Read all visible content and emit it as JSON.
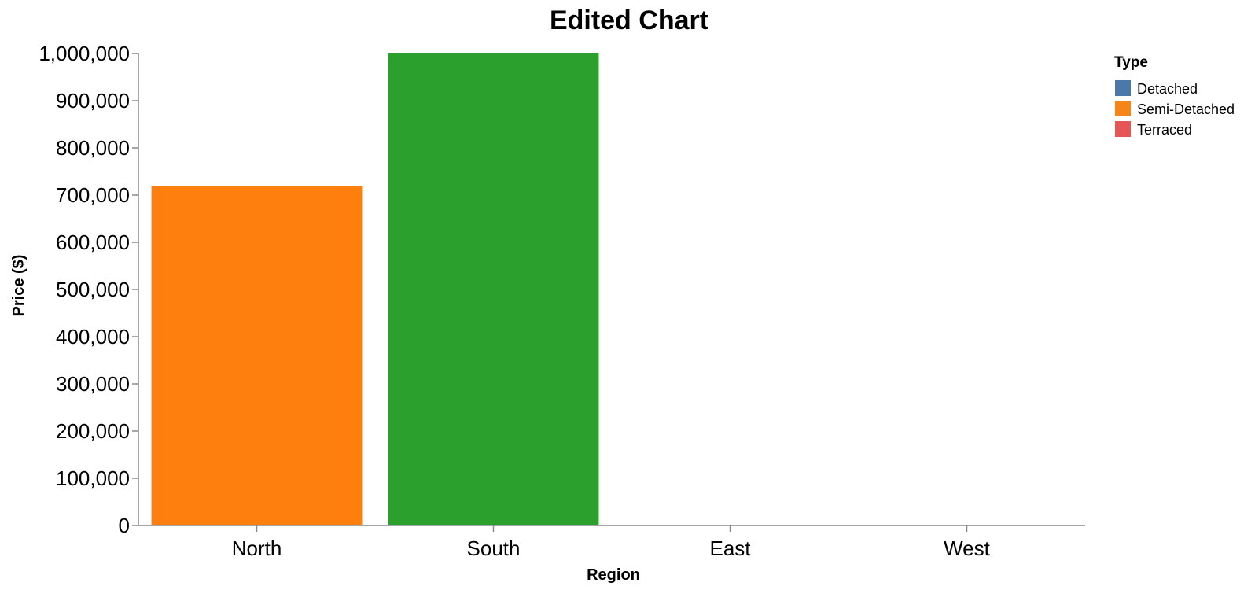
{
  "chart_data": {
    "type": "bar",
    "title": "Edited Chart",
    "xlabel": "Region",
    "ylabel": "Price ($)",
    "categories": [
      "North",
      "South",
      "East",
      "West"
    ],
    "values": [
      720000,
      1000000,
      0,
      0
    ],
    "bar_colors": [
      "#ff7f0e",
      "#2ca02c",
      null,
      null
    ],
    "ylim": [
      0,
      1000000
    ],
    "yticks": [
      0,
      100000,
      200000,
      300000,
      400000,
      500000,
      600000,
      700000,
      800000,
      900000,
      1000000
    ],
    "ytick_labels": [
      "0",
      "100,000",
      "200,000",
      "300,000",
      "400,000",
      "500,000",
      "600,000",
      "700,000",
      "800,000",
      "900,000",
      "1,000,000"
    ],
    "grid": false,
    "legend": {
      "title": "Type",
      "placement": "top-right",
      "entries": [
        {
          "label": "Detached",
          "color": "#4c78a8"
        },
        {
          "label": "Semi-Detached",
          "color": "#f58518"
        },
        {
          "label": "Terraced",
          "color": "#e45756"
        }
      ]
    }
  }
}
